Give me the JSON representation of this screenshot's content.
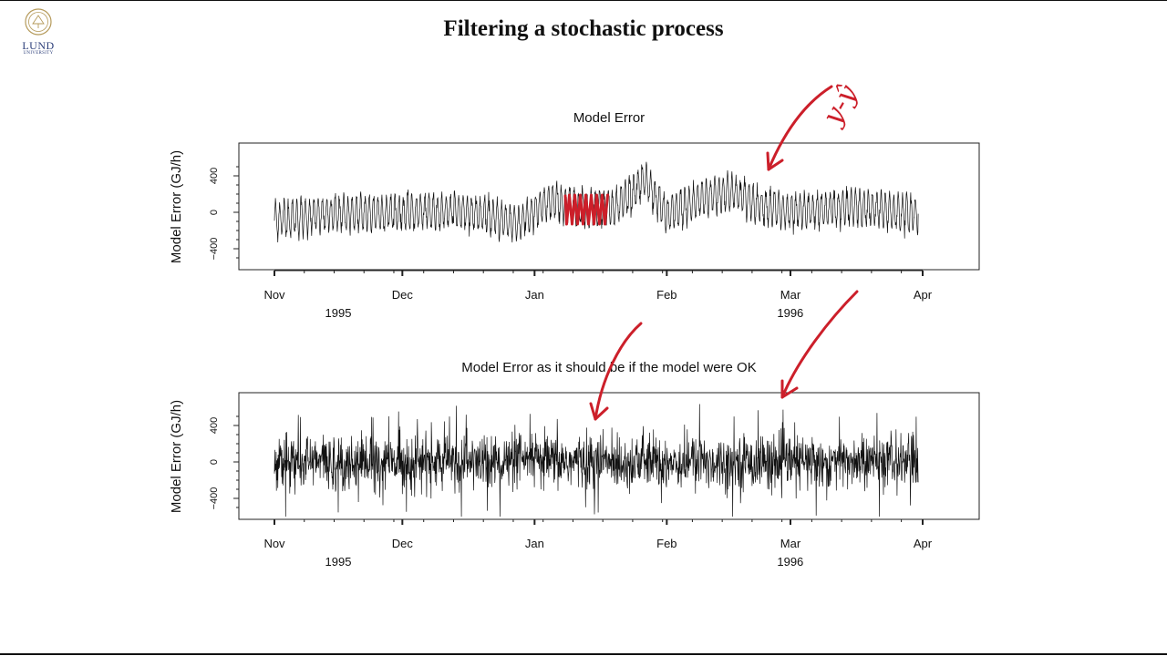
{
  "slide": {
    "title": "Filtering a stochastic process",
    "logo": {
      "name": "LUND",
      "subtitle": "UNIVERSITY",
      "icon": "lund-seal-icon"
    }
  },
  "chart_data": [
    {
      "type": "line",
      "title": "Model Error",
      "ylabel": "Model Error (GJ/h)",
      "xlabel": "",
      "x_range": [
        "1995-11-01",
        "1996-04-01"
      ],
      "ylim": [
        -600,
        800
      ],
      "y_ticks": [
        -400,
        0,
        400
      ],
      "x_ticks": [
        {
          "date": "1995-11-01",
          "label": "Nov"
        },
        {
          "date": "1995-12-01",
          "label": "Dec"
        },
        {
          "date": "1996-01-01",
          "label": "Jan"
        },
        {
          "date": "1996-02-01",
          "label": "Feb"
        },
        {
          "date": "1996-03-01",
          "label": "Mar"
        },
        {
          "date": "1996-04-01",
          "label": "Apr"
        }
      ],
      "year_labels": [
        {
          "date": "1995-11-01",
          "label": "1995"
        },
        {
          "date": "1996-02-15",
          "label": "1996"
        }
      ],
      "series_style": "hourly, strong daily cycle",
      "amplitude_gj_h": 180,
      "envelope": [
        {
          "date": "1995-11-01",
          "value": -80
        },
        {
          "date": "1995-11-15",
          "value": -20
        },
        {
          "date": "1995-12-01",
          "value": 0
        },
        {
          "date": "1995-12-15",
          "value": 20
        },
        {
          "date": "1995-12-28",
          "value": -120
        },
        {
          "date": "1996-01-05",
          "value": 120
        },
        {
          "date": "1996-01-12",
          "value": 50
        },
        {
          "date": "1996-01-20",
          "value": 60
        },
        {
          "date": "1996-01-27",
          "value": 350
        },
        {
          "date": "1996-02-01",
          "value": -40
        },
        {
          "date": "1996-02-10",
          "value": 170
        },
        {
          "date": "1996-02-16",
          "value": 230
        },
        {
          "date": "1996-02-22",
          "value": 100
        },
        {
          "date": "1996-03-01",
          "value": -10
        },
        {
          "date": "1996-03-15",
          "value": 60
        },
        {
          "date": "1996-03-31",
          "value": -20
        }
      ],
      "grid": false,
      "legend": "none"
    },
    {
      "type": "line",
      "title": "Model Error as it should be if the model were OK",
      "ylabel": "Model Error (GJ/h)",
      "xlabel": "",
      "x_range": [
        "1995-11-01",
        "1996-04-01"
      ],
      "ylim": [
        -600,
        800
      ],
      "y_ticks": [
        -400,
        0,
        400
      ],
      "x_ticks": [
        {
          "date": "1995-11-01",
          "label": "Nov"
        },
        {
          "date": "1995-12-01",
          "label": "Dec"
        },
        {
          "date": "1996-01-01",
          "label": "Jan"
        },
        {
          "date": "1996-02-01",
          "label": "Feb"
        },
        {
          "date": "1996-03-01",
          "label": "Mar"
        },
        {
          "date": "1996-04-01",
          "label": "Apr"
        }
      ],
      "year_labels": [
        {
          "date": "1995-11-01",
          "label": "1995"
        },
        {
          "date": "1996-02-15",
          "label": "1996"
        }
      ],
      "series_style": "white noise",
      "noise_std_gj_h": 150,
      "range_gj_h": [
        -600,
        700
      ],
      "grid": false,
      "legend": "none"
    }
  ],
  "annotations": {
    "color": "#cc1f2a",
    "handwritten_text": "y-ŷ"
  }
}
